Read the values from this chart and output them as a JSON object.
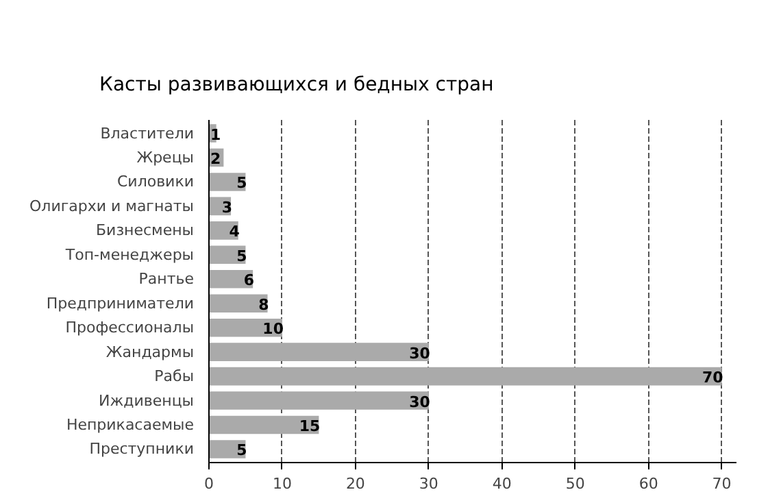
{
  "chart_data": {
    "type": "bar",
    "orientation": "horizontal",
    "title": "Касты развивающихся и бедных стран",
    "categories": [
      "Властители",
      "Жрецы",
      "Силовики",
      "Олигархи и магнаты",
      "Бизнесмены",
      "Топ-менеджеры",
      "Рантье",
      "Предприниматели",
      "Профессионалы",
      "Жандармы",
      "Рабы",
      "Иждивенцы",
      "Неприкасаемые",
      "Преступники"
    ],
    "values": [
      1,
      2,
      5,
      3,
      4,
      5,
      6,
      8,
      10,
      30,
      70,
      30,
      15,
      5
    ],
    "color": "#aaaaaa",
    "xlim": [
      0,
      72
    ],
    "xticks": [
      0,
      10,
      20,
      30,
      40,
      50,
      60,
      70
    ],
    "grid": "x",
    "data_labels": true
  }
}
